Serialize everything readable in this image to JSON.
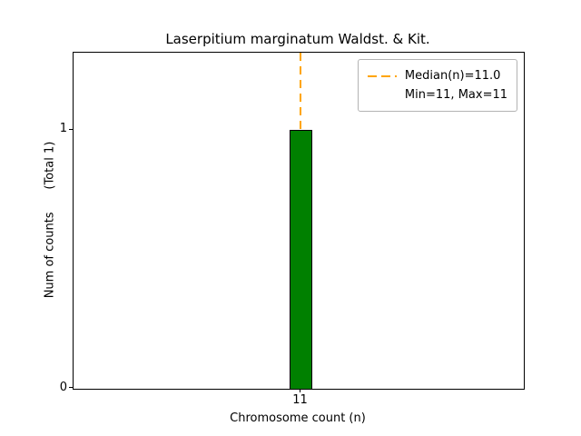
{
  "figure": {
    "title": "Laserpitium marginatum Waldst. & Kit.",
    "xlabel": "Chromosome count (n)",
    "ylabel": "Num of counts      (Total 1)",
    "yticks": [
      "0",
      "1"
    ],
    "xticks": [
      "11"
    ]
  },
  "legend": {
    "median_label": "Median(n)=11.0",
    "minmax_label": "Min=11, Max=11"
  },
  "colors": {
    "bar_fill": "#008000",
    "bar_edge": "#000000",
    "median_line": "#ffa500",
    "axis": "#000000",
    "legend_border": "#b3b3b3"
  },
  "chart_data": {
    "type": "bar",
    "title": "Laserpitium marginatum Waldst. & Kit.",
    "xlabel": "Chromosome count (n)",
    "ylabel": "Num of counts (Total 1)",
    "categories": [
      "11"
    ],
    "values": [
      1
    ],
    "ylim": [
      0,
      1.3
    ],
    "yticks": [
      0,
      1
    ],
    "total": 1,
    "median_n": 11.0,
    "min_n": 11,
    "max_n": 11,
    "grid": false,
    "legend_position": "upper right",
    "annotations": [
      "vertical dashed median line at x=11"
    ]
  }
}
